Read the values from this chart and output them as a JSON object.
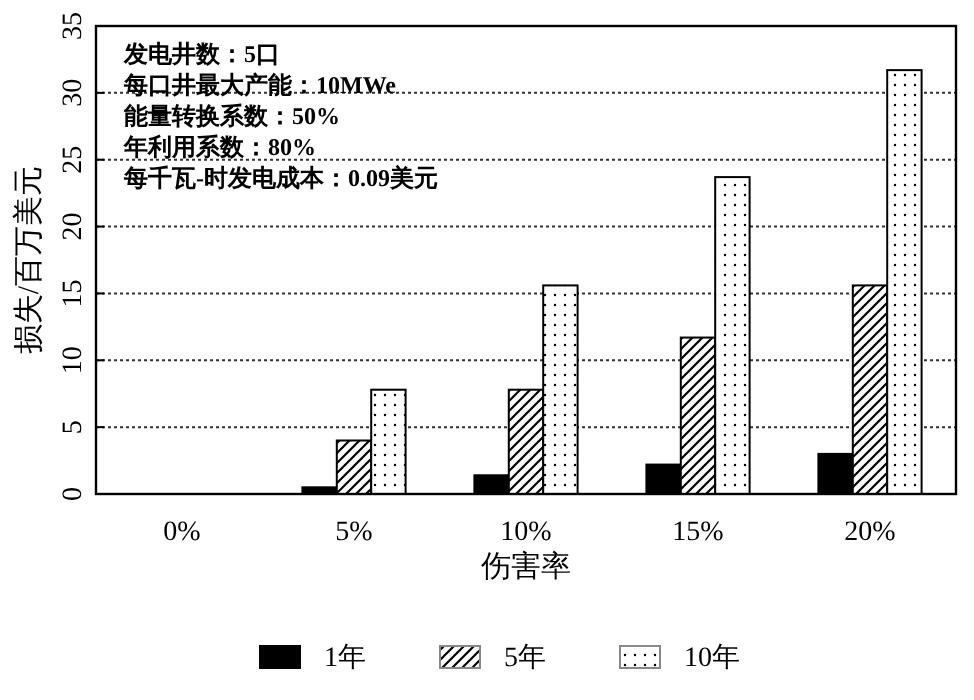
{
  "chart_data": {
    "type": "bar",
    "xlabel": "伤害率",
    "ylabel": "损失/百万美元",
    "categories": [
      "0%",
      "5%",
      "10%",
      "15%",
      "20%"
    ],
    "series": [
      {
        "name": "1年",
        "color": "#000000",
        "values": [
          0,
          0.5,
          1.4,
          2.2,
          3.0
        ]
      },
      {
        "name": "5年",
        "color": "#000000",
        "values": [
          0,
          4.0,
          7.8,
          11.7,
          15.6
        ]
      },
      {
        "name": "10年",
        "color": "#000000",
        "values": [
          0,
          7.8,
          15.6,
          23.7,
          31.7
        ]
      }
    ],
    "ylim": [
      0,
      35
    ],
    "yticks": [
      0,
      5,
      10,
      15,
      20,
      25,
      30,
      35
    ],
    "grid": "y",
    "legend": "bottom",
    "annotations": [
      "发电井数：5口",
      "每口井最大产能：10MWe",
      "能量转换系数：50%",
      "年利用系数：80%",
      "每千瓦-时发电成本：0.09美元"
    ]
  }
}
